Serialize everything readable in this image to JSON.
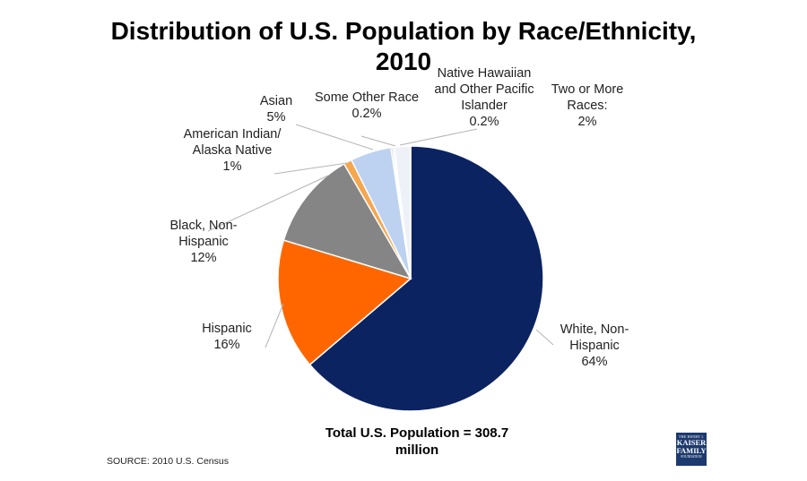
{
  "title": {
    "line1": "Distribution of U.S. Population by Race/Ethnicity,",
    "line2": "2010"
  },
  "chart_data": {
    "type": "pie",
    "title": "Distribution of U.S. Population by Race/Ethnicity, 2010",
    "slices": [
      {
        "key": "white",
        "label_lines": [
          "White, Non-",
          "Hispanic"
        ],
        "value_text": "64%",
        "value": 64,
        "color": "#0b2361"
      },
      {
        "key": "hispanic",
        "label_lines": [
          "Hispanic"
        ],
        "value_text": "16%",
        "value": 16,
        "color": "#ff6600"
      },
      {
        "key": "black",
        "label_lines": [
          "Black, Non-",
          "Hispanic"
        ],
        "value_text": "12%",
        "value": 12,
        "color": "#858585"
      },
      {
        "key": "aian",
        "label_lines": [
          "American Indian/",
          "Alaska Native"
        ],
        "value_text": "1%",
        "value": 1,
        "color": "#f5a64f"
      },
      {
        "key": "asian",
        "label_lines": [
          "Asian"
        ],
        "value_text": "5%",
        "value": 5,
        "color": "#bdd2f0"
      },
      {
        "key": "other",
        "label_lines": [
          "Some Other Race"
        ],
        "value_text": "0.2%",
        "value": 0.2,
        "color": "#6f7f99"
      },
      {
        "key": "nhpi",
        "label_lines": [
          "Native Hawaiian",
          "and Other Pacific",
          "Islander"
        ],
        "value_text": "0.2%",
        "value": 0.2,
        "color": "#c9c9c9"
      },
      {
        "key": "multi",
        "label_lines": [
          "Two or More",
          "Races:"
        ],
        "value_text": "2%",
        "value": 2,
        "color": "#eef2f8"
      }
    ]
  },
  "total": {
    "line1": "Total U.S. Population = 308.7",
    "line2": "million"
  },
  "source": "SOURCE: 2010 U.S. Census",
  "logo": {
    "line1": "THE HENRY J.",
    "line2": "KAISER",
    "line3": "FAMILY",
    "line4": "FOUNDATION"
  }
}
